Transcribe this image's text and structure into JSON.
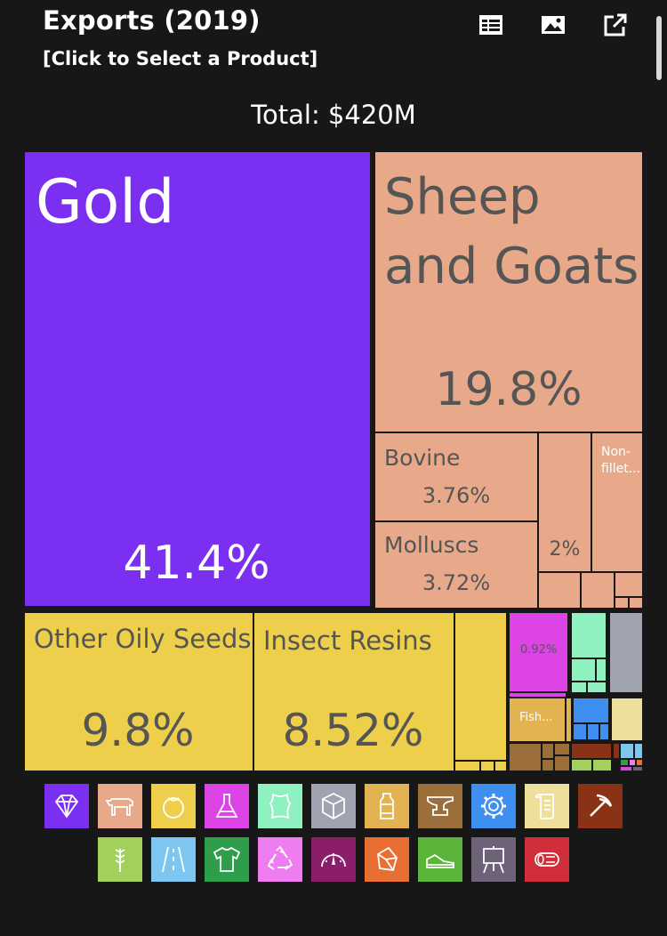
{
  "header": {
    "title": "Exports (2019)",
    "subtitle": "[Click to Select a Product]",
    "total": "Total: $420M",
    "icons": [
      "table-icon",
      "image-icon",
      "external-link-icon"
    ]
  },
  "chart_data": {
    "type": "treemap",
    "title": "Exports (2019)",
    "total": "$420M",
    "tiles": [
      {
        "name": "Gold",
        "label": "Gold",
        "value_label": "41.4%",
        "value": 41.4,
        "color": "#7b2ff0",
        "text_color": "#ffffff"
      },
      {
        "name": "Sheep and Goats",
        "label": "Sheep and Goats",
        "value_label": "19.8%",
        "value": 19.8,
        "color": "#e8a98a",
        "text_color": "#555555"
      },
      {
        "name": "Bovine",
        "label": "Bovine",
        "value_label": "3.76%",
        "value": 3.76,
        "color": "#e8a98a",
        "text_color": "#555555"
      },
      {
        "name": "Molluscs",
        "label": "Molluscs",
        "value_label": "3.72%",
        "value": 3.72,
        "color": "#e8a98a",
        "text_color": "#555555"
      },
      {
        "name": "",
        "label": "",
        "value_label": "2%",
        "value": 2.0,
        "color": "#e8a98a",
        "text_color": "#555555"
      },
      {
        "name": "Non-fillet...",
        "label": "Non-fillet...",
        "value_label": "",
        "value": 1.5,
        "color": "#e8a98a",
        "text_color": "#ffffff"
      },
      {
        "name": "Other Oily Seeds",
        "label": "Other Oily Seeds",
        "value_label": "9.8%",
        "value": 9.8,
        "color": "#eecf4b",
        "text_color": "#555555"
      },
      {
        "name": "Insect Resins",
        "label": "Insect Resins",
        "value_label": "8.52%",
        "value": 8.52,
        "color": "#eecf4b",
        "text_color": "#555555"
      },
      {
        "name": "",
        "label": "",
        "value_label": "0.92%",
        "value": 0.92,
        "color": "#dd44e6",
        "text_color": "#555555"
      },
      {
        "name": "Fish...",
        "label": "Fish...",
        "value_label": "",
        "value": 0.8,
        "color": "#e3b352",
        "text_color": "#ffffff"
      }
    ]
  },
  "legend": [
    {
      "name": "precious-stones-icon",
      "color": "#7b2ff0"
    },
    {
      "name": "animal-products-icon",
      "color": "#e8a98a"
    },
    {
      "name": "vegetable-products-icon",
      "color": "#eecf4b"
    },
    {
      "name": "chemical-products-icon",
      "color": "#dd44e6"
    },
    {
      "name": "animal-hides-icon",
      "color": "#8ff0c0"
    },
    {
      "name": "plastics-rubbers-icon",
      "color": "#a0a4b0"
    },
    {
      "name": "foodstuffs-icon",
      "color": "#e3b352"
    },
    {
      "name": "metals-icon",
      "color": "#9b6e3a"
    },
    {
      "name": "machines-icon",
      "color": "#3f8ff0"
    },
    {
      "name": "paper-goods-icon",
      "color": "#eedf9a"
    },
    {
      "name": "mineral-products-icon",
      "color": "#8a3216"
    },
    {
      "name": "weapons-icon",
      "color": "#a2d05a"
    },
    {
      "name": "transportation-icon",
      "color": "#7cc6f0"
    },
    {
      "name": "textiles-icon",
      "color": "#2f9e4a"
    },
    {
      "name": "miscellaneous-icon",
      "color": "#ee7ef0"
    },
    {
      "name": "instruments-icon",
      "color": "#8a1e6a"
    },
    {
      "name": "stone-and-glass-icon",
      "color": "#e86e32"
    },
    {
      "name": "footwear-and-headwear-icon",
      "color": "#5ab53a"
    },
    {
      "name": "arts-and-antiques-icon",
      "color": "#6e6278"
    },
    {
      "name": "wood-products-icon",
      "color": "#d02e3a"
    }
  ]
}
